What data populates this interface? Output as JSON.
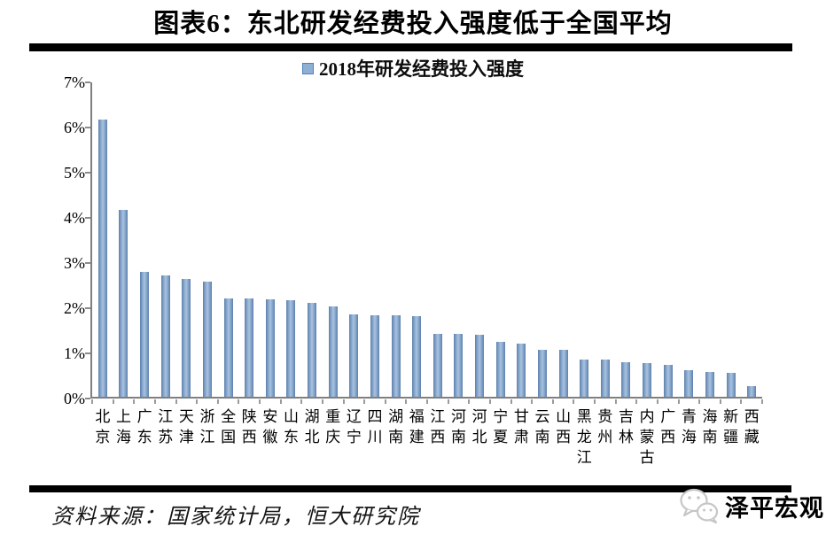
{
  "page": {
    "title": "图表6：东北研发经费投入强度低于全国平均",
    "source_note": "资料来源：国家统计局，恒大研究院",
    "watermark_text": "泽平宏观",
    "watermark_icon": "wechat-icon",
    "watermark_color": "#c6c6c6"
  },
  "chart_data": {
    "type": "bar",
    "title": "图表6：东北研发经费投入强度低于全国平均",
    "legend": "2018年研发经费投入强度",
    "legend_position": "top",
    "grid": false,
    "categories": [
      "北京",
      "上海",
      "广东",
      "江苏",
      "天津",
      "浙江",
      "全国",
      "陕西",
      "安徽",
      "山东",
      "湖北",
      "重庆",
      "辽宁",
      "四川",
      "湖南",
      "福建",
      "江西",
      "河南",
      "河北",
      "宁夏",
      "甘肃",
      "云南",
      "山西",
      "黑龙江",
      "贵州",
      "吉林",
      "内蒙古",
      "广西",
      "青海",
      "海南",
      "新疆",
      "西藏"
    ],
    "values": [
      6.17,
      4.16,
      2.78,
      2.7,
      2.62,
      2.57,
      2.19,
      2.18,
      2.16,
      2.15,
      2.09,
      2.01,
      1.84,
      1.81,
      1.81,
      1.8,
      1.41,
      1.4,
      1.39,
      1.23,
      1.18,
      1.05,
      1.05,
      0.83,
      0.82,
      0.76,
      0.75,
      0.71,
      0.6,
      0.56,
      0.53,
      0.23
    ],
    "unit": "%",
    "xlabel": "",
    "ylabel": "",
    "ylim": [
      0,
      7
    ],
    "ytick_labels": [
      "0%",
      "1%",
      "2%",
      "3%",
      "4%",
      "5%",
      "6%",
      "7%"
    ],
    "bar_color": "#95B3D7",
    "bar_edge_color": "#5D80AB",
    "legend_swatch_color": "#8FAFD3",
    "axis_color": "#7F7F7F"
  }
}
